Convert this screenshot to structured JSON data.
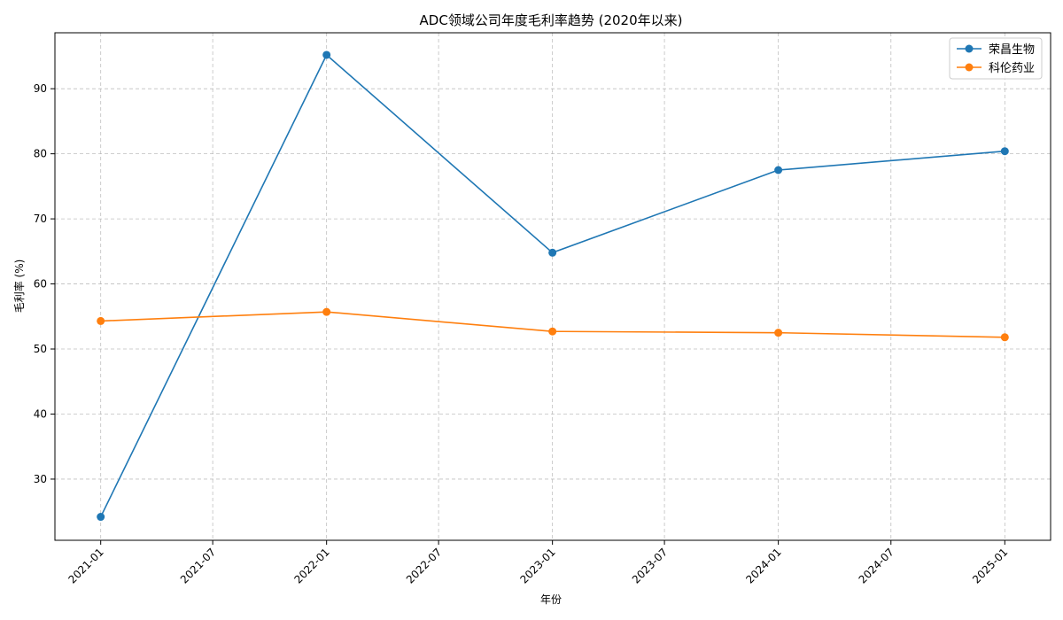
{
  "chart_data": {
    "type": "line",
    "title": "ADC领域公司年度毛利率趋势 (2020年以来)",
    "xlabel": "年份",
    "ylabel": "毛利率 (%)",
    "x": [
      "2021-01-01",
      "2022-01-01",
      "2023-01-01",
      "2024-01-01",
      "2025-01-01"
    ],
    "xlim": [
      "2020-10-19",
      "2025-03-16"
    ],
    "ylim": [
      20.6,
      98.6
    ],
    "x_ticks": [
      "2021-01",
      "2021-07",
      "2022-01",
      "2022-07",
      "2023-01",
      "2023-07",
      "2024-01",
      "2024-07",
      "2025-01"
    ],
    "y_ticks": [
      30,
      40,
      50,
      60,
      70,
      80,
      90
    ],
    "grid": true,
    "legend_position": "top-right",
    "series": [
      {
        "name": "荣昌生物",
        "color": "#1f77b4",
        "values": [
          24.2,
          95.2,
          64.8,
          77.5,
          80.4
        ]
      },
      {
        "name": "科伦药业",
        "color": "#ff7f0e",
        "values": [
          54.3,
          55.7,
          52.7,
          52.5,
          51.8
        ]
      }
    ]
  }
}
